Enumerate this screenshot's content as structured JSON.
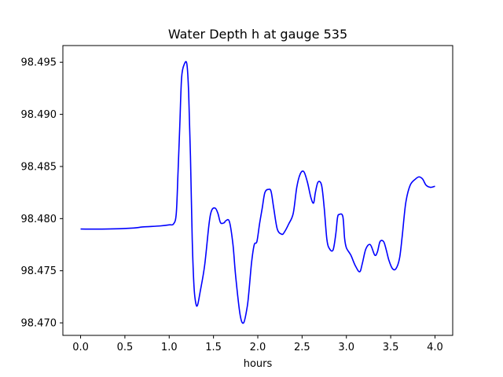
{
  "chart_data": {
    "type": "line",
    "title": "Water Depth h at gauge 535",
    "xlabel": "hours",
    "ylabel": "",
    "xlim": [
      -0.2,
      4.2
    ],
    "ylim": [
      98.4688,
      98.4966
    ],
    "xticks": [
      0.0,
      0.5,
      1.0,
      1.5,
      2.0,
      2.5,
      3.0,
      3.5,
      4.0
    ],
    "xtick_labels": [
      "0.0",
      "0.5",
      "1.0",
      "1.5",
      "2.0",
      "2.5",
      "3.0",
      "3.5",
      "4.0"
    ],
    "yticks": [
      98.47,
      98.475,
      98.48,
      98.485,
      98.49,
      98.495
    ],
    "ytick_labels": [
      "98.470",
      "98.475",
      "98.480",
      "98.485",
      "98.490",
      "98.495"
    ],
    "grid": false,
    "series": [
      {
        "color": "#0000ff",
        "x": [
          0.0,
          0.3,
          0.6,
          0.7,
          0.9,
          1.0,
          1.05,
          1.08,
          1.1,
          1.12,
          1.14,
          1.17,
          1.2,
          1.22,
          1.24,
          1.26,
          1.28,
          1.3,
          1.32,
          1.35,
          1.4,
          1.45,
          1.48,
          1.52,
          1.55,
          1.58,
          1.62,
          1.64,
          1.68,
          1.72,
          1.75,
          1.8,
          1.84,
          1.88,
          1.9,
          1.93,
          1.96,
          1.99,
          2.02,
          2.05,
          2.08,
          2.12,
          2.15,
          2.18,
          2.22,
          2.27,
          2.3,
          2.35,
          2.4,
          2.44,
          2.48,
          2.52,
          2.56,
          2.6,
          2.63,
          2.65,
          2.68,
          2.72,
          2.75,
          2.78,
          2.81,
          2.85,
          2.88,
          2.9,
          2.92,
          2.96,
          2.98,
          3.0,
          3.05,
          3.1,
          3.15,
          3.18,
          3.22,
          3.27,
          3.32,
          3.35,
          3.38,
          3.42,
          3.45,
          3.48,
          3.52,
          3.56,
          3.6,
          3.63,
          3.67,
          3.72,
          3.78,
          3.82,
          3.86,
          3.9,
          3.95,
          4.0
        ],
        "y": [
          98.479,
          98.479,
          98.4791,
          98.4792,
          98.4793,
          98.4794,
          98.4795,
          98.4805,
          98.4845,
          98.489,
          98.4935,
          98.4948,
          98.4948,
          98.492,
          98.486,
          98.478,
          98.4735,
          98.4719,
          98.4717,
          98.473,
          98.4755,
          98.4795,
          98.4808,
          98.481,
          98.4805,
          98.4796,
          98.4796,
          98.4798,
          98.4797,
          98.4775,
          98.4745,
          98.4708,
          98.47,
          98.4715,
          98.473,
          98.4758,
          98.4775,
          98.4778,
          98.4795,
          98.481,
          98.4825,
          98.4828,
          98.4826,
          98.481,
          98.479,
          98.4785,
          98.4787,
          98.4795,
          98.4805,
          98.483,
          98.4843,
          98.4845,
          98.4835,
          98.482,
          98.4815,
          98.4825,
          98.4835,
          98.4832,
          98.481,
          98.478,
          98.4771,
          98.477,
          98.4785,
          98.4801,
          98.4804,
          98.4802,
          98.4781,
          98.4772,
          98.4765,
          98.4755,
          98.4749,
          98.4757,
          98.4771,
          98.4775,
          98.4765,
          98.4768,
          98.4778,
          98.4778,
          98.477,
          98.476,
          98.4752,
          98.4752,
          98.4762,
          98.4783,
          98.4815,
          98.4832,
          98.4838,
          98.484,
          98.4838,
          98.4832,
          98.483,
          98.4831
        ]
      }
    ]
  }
}
